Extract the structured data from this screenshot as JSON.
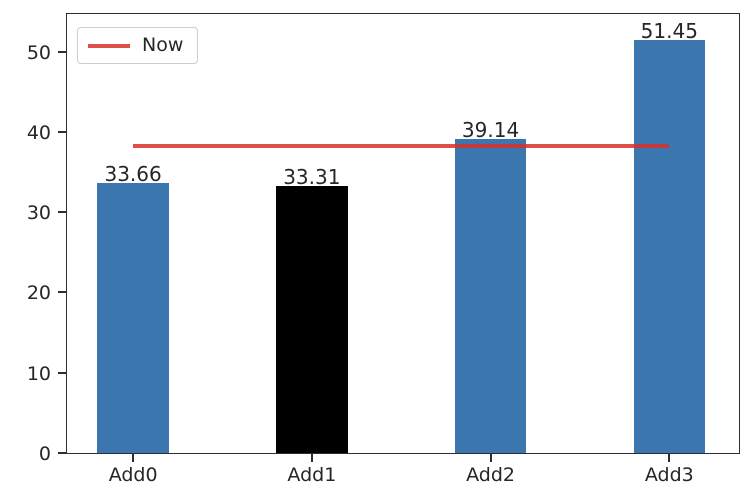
{
  "chart_data": {
    "type": "bar",
    "categories": [
      "Add0",
      "Add1",
      "Add2",
      "Add3"
    ],
    "values": [
      33.66,
      33.31,
      39.14,
      51.45
    ],
    "value_labels": [
      "33.66",
      "33.31",
      "39.14",
      "51.45"
    ],
    "bar_colors": [
      "#3b76af",
      "#000000",
      "#3b76af",
      "#3b76af"
    ],
    "title": "",
    "xlabel": "",
    "ylabel": "",
    "yticks": [
      0,
      10,
      20,
      30,
      40,
      50
    ],
    "ylim": [
      0,
      54.7
    ],
    "xlim": [
      -0.37,
      3.39
    ],
    "bar_width_units": 0.4,
    "grid": "off",
    "legend_position": "upper left",
    "now_line": {
      "label": "Now",
      "value": 38.3,
      "start_category_index": 0,
      "end_category_index": 3,
      "color": "rgba(217,48,42,0.85)"
    }
  },
  "colors": {
    "bar_blue": "#3b76af",
    "bar_black": "#000000",
    "line_red": "rgba(217,48,42,0.85)",
    "spine": "#2e2e2e",
    "text": "#262626",
    "legend_border": "#cccccc",
    "background": "#ffffff"
  },
  "legend": {
    "now_label": "Now"
  }
}
